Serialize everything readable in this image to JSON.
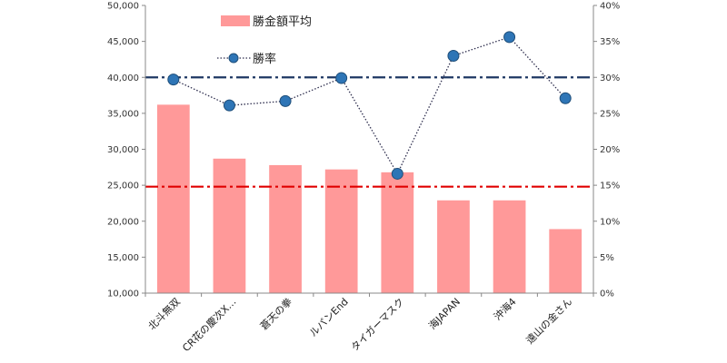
{
  "chart_data": {
    "type": "bar",
    "categories": [
      "北斗無双",
      "CR花の慶次X…",
      "蒼天の拳",
      "ルパンEnd",
      "タイガーマスク",
      "海JAPAN",
      "沖海4",
      "遠山の金さん"
    ],
    "series": [
      {
        "name": "勝金額平均",
        "kind": "bar",
        "axis": "left",
        "color": "#ff9999",
        "values": [
          36200,
          28700,
          27800,
          27200,
          26800,
          22900,
          22900,
          18900
        ]
      },
      {
        "name": "勝率",
        "kind": "line",
        "axis": "right",
        "color": "#2e75b6",
        "values": [
          29.7,
          26.1,
          26.7,
          29.9,
          16.6,
          33.0,
          35.6,
          27.1
        ]
      }
    ],
    "y_left": {
      "min": 10000,
      "max": 50000,
      "step": 5000,
      "ticks": [
        "10,000",
        "15,000",
        "20,000",
        "25,000",
        "30,000",
        "35,000",
        "40,000",
        "45,000",
        "50,000"
      ]
    },
    "y_right": {
      "min": 0,
      "max": 40,
      "step": 5,
      "ticks": [
        "0%",
        "5%",
        "10%",
        "15%",
        "20%",
        "25%",
        "30%",
        "35%",
        "40%"
      ]
    },
    "reference_lines": [
      {
        "axis": "left",
        "value": 40000,
        "color": "#1f3864"
      },
      {
        "axis": "left",
        "value": 24800,
        "color": "#e00000"
      }
    ],
    "grid": false,
    "legend": "top-center"
  }
}
